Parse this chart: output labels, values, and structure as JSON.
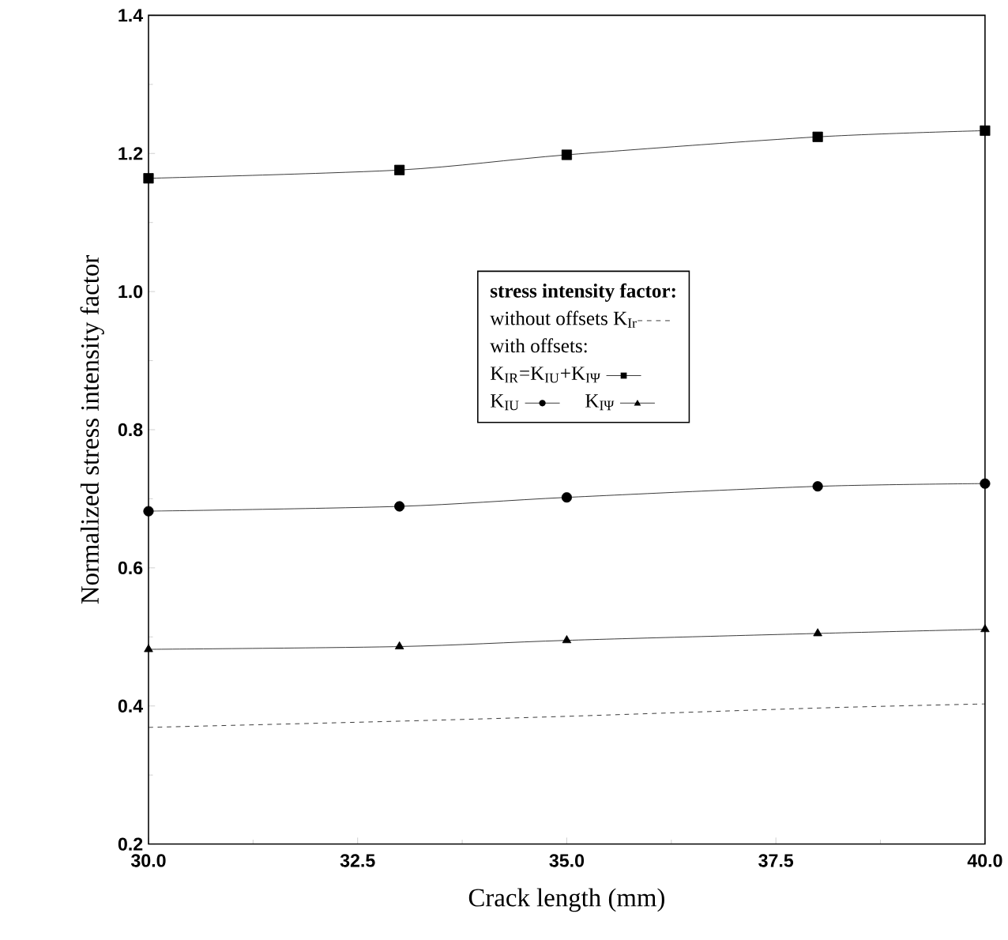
{
  "chart_data": {
    "type": "line",
    "xlabel": "Crack length (mm)",
    "ylabel": "Normalized stress intensity factor",
    "legend_title": "stress intensity factor:",
    "annotations": [
      "with offsets:"
    ],
    "x": [
      30,
      33,
      35,
      38,
      40
    ],
    "series": [
      {
        "name": "without offsets K$_{Ir}$",
        "color": "#000000",
        "values": [
          0.369,
          0.378,
          0.385,
          0.397,
          0.403
        ],
        "line_style": "dashed",
        "marker": "none"
      },
      {
        "name": "K$_{IR}$=K$_{IU}$+K$_{IΨ}$",
        "color": "#000000",
        "values": [
          1.164,
          1.176,
          1.198,
          1.224,
          1.233
        ],
        "line_style": "solid",
        "marker": "square"
      },
      {
        "name": "K$_{IU}$",
        "color": "#000000",
        "values": [
          0.682,
          0.689,
          0.702,
          0.718,
          0.722
        ],
        "line_style": "solid",
        "marker": "circle"
      },
      {
        "name": "K$_{IΨ}$",
        "color": "#000000",
        "values": [
          0.482,
          0.486,
          0.495,
          0.505,
          0.511
        ],
        "line_style": "solid",
        "marker": "triangle"
      }
    ],
    "xlim": [
      30,
      40
    ],
    "ylim": [
      0.2,
      1.4
    ],
    "xticks": [
      {
        "value": 30,
        "label": "30.0"
      },
      {
        "value": 32.5,
        "label": "32.5"
      },
      {
        "value": 35,
        "label": "35.0"
      },
      {
        "value": 37.5,
        "label": "37.5"
      },
      {
        "value": 40,
        "label": "40.0"
      }
    ],
    "yticks": [
      0.2,
      0.4,
      0.6,
      0.8,
      {
        "value": 1.0,
        "label": "1.0"
      },
      1.2,
      1.4
    ],
    "legend": "center",
    "grid": false
  }
}
